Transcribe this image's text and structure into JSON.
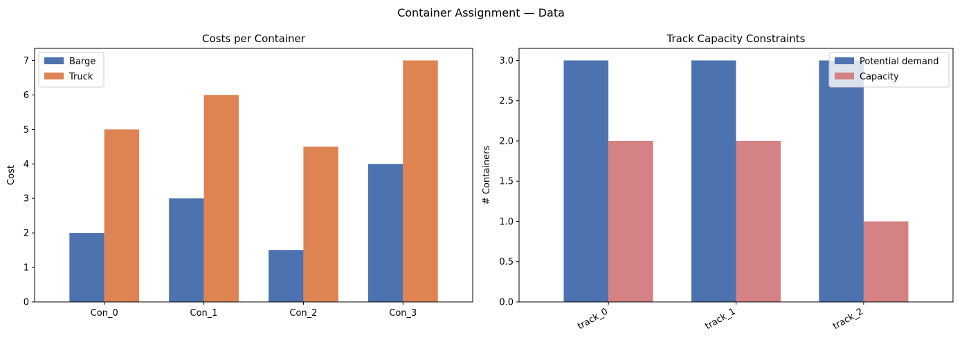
{
  "figure": {
    "suptitle": "Container Assignment — Data"
  },
  "chart_data": [
    {
      "type": "bar",
      "title": "Costs per Container",
      "xlabel": "",
      "ylabel": "Cost",
      "categories": [
        "Con_0",
        "Con_1",
        "Con_2",
        "Con_3"
      ],
      "series": [
        {
          "name": "Barge",
          "values": [
            2,
            3,
            1.5,
            4
          ],
          "color": "#4c72b0"
        },
        {
          "name": "Truck",
          "values": [
            5,
            6,
            4.5,
            7
          ],
          "color": "#dd8452"
        }
      ],
      "ylim": [
        0,
        7.35
      ],
      "yticks": [
        0,
        1,
        2,
        3,
        4,
        5,
        6,
        7
      ],
      "ytick_labels": [
        "0",
        "1",
        "2",
        "3",
        "4",
        "5",
        "6",
        "7"
      ],
      "legend": "top-left",
      "grid": false,
      "xtick_rotation": 0
    },
    {
      "type": "bar",
      "title": "Track Capacity Constraints",
      "xlabel": "",
      "ylabel": "# Containers",
      "categories": [
        "track_0",
        "track_1",
        "track_2"
      ],
      "series": [
        {
          "name": "Potential demand",
          "values": [
            3,
            3,
            3
          ],
          "color": "#4c72b0"
        },
        {
          "name": "Capacity",
          "values": [
            2,
            2,
            1
          ],
          "color": "#d48283"
        }
      ],
      "ylim": [
        0,
        3.15
      ],
      "yticks": [
        0,
        0.5,
        1,
        1.5,
        2,
        2.5,
        3
      ],
      "ytick_labels": [
        "0.0",
        "0.5",
        "1.0",
        "1.5",
        "2.0",
        "2.5",
        "3.0"
      ],
      "legend": "top-right",
      "grid": false,
      "xtick_rotation": -30
    }
  ]
}
